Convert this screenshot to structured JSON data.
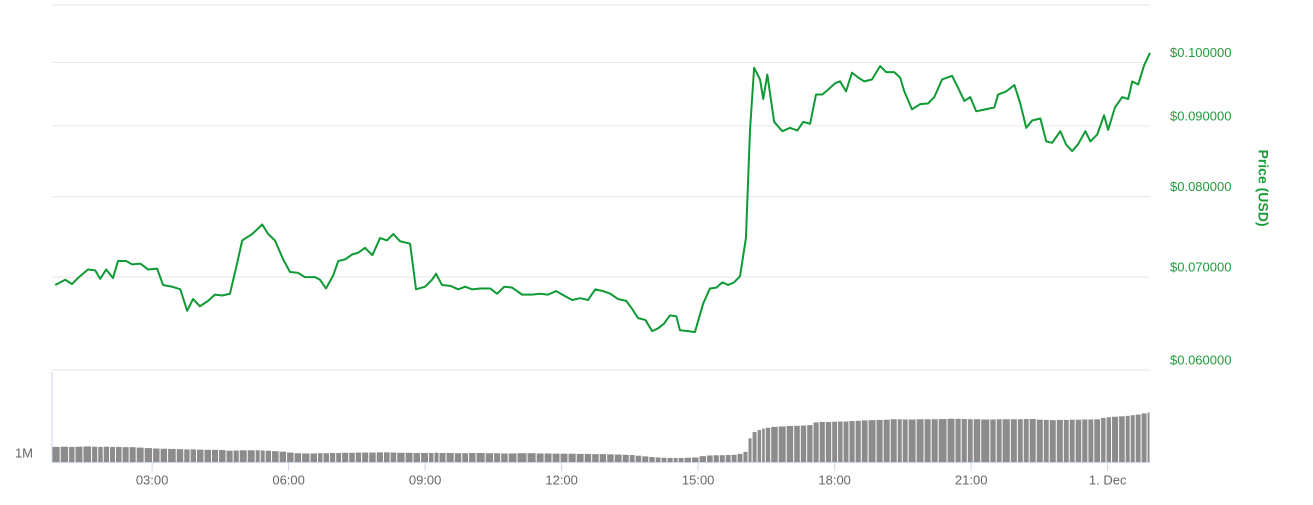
{
  "chart_data": {
    "type": "line",
    "y_label": "Price (USD)",
    "ylog": true,
    "grid": true,
    "xlim": [
      0.8,
      24.93
    ],
    "xticks": [
      {
        "value": 3,
        "label": "03:00"
      },
      {
        "value": 6,
        "label": "06:00"
      },
      {
        "value": 9,
        "label": "09:00"
      },
      {
        "value": 12,
        "label": "12:00"
      },
      {
        "value": 15,
        "label": "15:00"
      },
      {
        "value": 18,
        "label": "18:00"
      },
      {
        "value": 21,
        "label": "21:00"
      },
      {
        "value": 24,
        "label": "1. Dec"
      }
    ],
    "ylim": [
      0.06,
      0.11
    ],
    "yticks": [
      {
        "value": 0.06,
        "label": "$0.060000"
      },
      {
        "value": 0.07,
        "label": "$0.070000"
      },
      {
        "value": 0.08,
        "label": "$0.080000"
      },
      {
        "value": 0.09,
        "label": "$0.090000"
      },
      {
        "value": 0.1,
        "label": "$0.100000"
      }
    ],
    "y2lim": [
      1000000,
      5000000
    ],
    "y2ticks": [
      {
        "value": 1000000,
        "label": "1M"
      }
    ],
    "x": [
      0.87,
      1.09,
      1.24,
      1.37,
      1.59,
      1.75,
      1.86,
      1.99,
      2.14,
      2.25,
      2.43,
      2.56,
      2.74,
      2.91,
      3.11,
      3.24,
      3.44,
      3.62,
      3.77,
      3.9,
      4.05,
      4.23,
      4.38,
      4.54,
      4.71,
      4.85,
      4.98,
      5.2,
      5.33,
      5.42,
      5.55,
      5.7,
      5.88,
      6.03,
      6.21,
      6.36,
      6.58,
      6.69,
      6.82,
      6.98,
      7.09,
      7.24,
      7.4,
      7.53,
      7.68,
      7.84,
      8.01,
      8.16,
      8.3,
      8.45,
      8.67,
      8.8,
      9.0,
      9.15,
      9.24,
      9.37,
      9.55,
      9.73,
      9.88,
      10.03,
      10.21,
      10.43,
      10.58,
      10.74,
      10.91,
      11.13,
      11.35,
      11.53,
      11.7,
      11.88,
      12.05,
      12.23,
      12.41,
      12.58,
      12.74,
      12.91,
      13.07,
      13.24,
      13.42,
      13.55,
      13.68,
      13.84,
      13.99,
      14.12,
      14.25,
      14.38,
      14.52,
      14.6,
      14.78,
      14.93,
      15.11,
      15.26,
      15.4,
      15.53,
      15.66,
      15.79,
      15.92,
      16.05,
      16.14,
      16.23,
      16.36,
      16.43,
      16.52,
      16.67,
      16.85,
      17.02,
      17.18,
      17.31,
      17.46,
      17.59,
      17.73,
      17.86,
      18.01,
      18.12,
      18.25,
      18.38,
      18.52,
      18.65,
      18.82,
      19.0,
      19.13,
      19.31,
      19.44,
      19.53,
      19.7,
      19.88,
      20.05,
      20.19,
      20.36,
      20.58,
      20.71,
      20.85,
      20.98,
      21.11,
      21.31,
      21.51,
      21.59,
      21.77,
      21.95,
      22.08,
      22.21,
      22.34,
      22.52,
      22.65,
      22.78,
      22.96,
      23.09,
      23.22,
      23.35,
      23.51,
      23.62,
      23.77,
      23.92,
      24.01,
      24.16,
      24.32,
      24.45,
      24.54,
      24.67,
      24.8,
      24.93
    ],
    "series": [
      {
        "color": "#0f9a35",
        "values": [
          0.0691,
          0.0697,
          0.0692,
          0.0699,
          0.0709,
          0.0708,
          0.0698,
          0.0709,
          0.0699,
          0.0719,
          0.0719,
          0.0715,
          0.0716,
          0.0709,
          0.071,
          0.0691,
          0.0689,
          0.0686,
          0.0662,
          0.0675,
          0.0667,
          0.0673,
          0.068,
          0.0679,
          0.0681,
          0.0712,
          0.0744,
          0.0752,
          0.0759,
          0.0764,
          0.0752,
          0.0744,
          0.0721,
          0.0706,
          0.0705,
          0.07,
          0.07,
          0.0697,
          0.0687,
          0.0702,
          0.0719,
          0.0721,
          0.0727,
          0.0729,
          0.0735,
          0.0726,
          0.0747,
          0.0744,
          0.0752,
          0.0743,
          0.074,
          0.0686,
          0.0689,
          0.0697,
          0.0704,
          0.0691,
          0.069,
          0.0686,
          0.0689,
          0.0686,
          0.0687,
          0.0687,
          0.0681,
          0.0689,
          0.0688,
          0.068,
          0.068,
          0.0681,
          0.068,
          0.0684,
          0.0679,
          0.0674,
          0.0676,
          0.0674,
          0.0686,
          0.0684,
          0.0681,
          0.0675,
          0.0673,
          0.0664,
          0.0654,
          0.0652,
          0.064,
          0.0643,
          0.0648,
          0.0657,
          0.0656,
          0.0641,
          0.064,
          0.0639,
          0.067,
          0.0687,
          0.0688,
          0.0694,
          0.0691,
          0.0694,
          0.0701,
          0.0747,
          0.0894,
          0.0991,
          0.0972,
          0.0941,
          0.098,
          0.0906,
          0.0892,
          0.0897,
          0.0893,
          0.0906,
          0.0903,
          0.0948,
          0.0948,
          0.0956,
          0.0966,
          0.0969,
          0.0953,
          0.0983,
          0.0975,
          0.0969,
          0.0972,
          0.0994,
          0.0984,
          0.0984,
          0.0975,
          0.0953,
          0.0925,
          0.0933,
          0.0934,
          0.0944,
          0.0972,
          0.0978,
          0.0959,
          0.0938,
          0.0944,
          0.0922,
          0.0925,
          0.0928,
          0.0948,
          0.0953,
          0.0963,
          0.0934,
          0.0897,
          0.0908,
          0.0911,
          0.0877,
          0.0875,
          0.0892,
          0.0872,
          0.0863,
          0.0873,
          0.0892,
          0.0877,
          0.0887,
          0.0916,
          0.0894,
          0.0928,
          0.0944,
          0.0941,
          0.0969,
          0.0964,
          0.0995,
          0.1016
        ]
      },
      {
        "type": "bar",
        "axis": "y2",
        "color": "#8c8c8c",
        "values": [
          1670000,
          1680000,
          1670000,
          1680000,
          1690000,
          1680000,
          1670000,
          1680000,
          1670000,
          1670000,
          1660000,
          1660000,
          1640000,
          1620000,
          1600000,
          1590000,
          1580000,
          1570000,
          1560000,
          1560000,
          1550000,
          1540000,
          1540000,
          1530000,
          1500000,
          1510000,
          1520000,
          1520000,
          1520000,
          1510000,
          1500000,
          1480000,
          1460000,
          1420000,
          1390000,
          1380000,
          1380000,
          1390000,
          1390000,
          1400000,
          1400000,
          1410000,
          1410000,
          1420000,
          1420000,
          1420000,
          1430000,
          1430000,
          1420000,
          1410000,
          1410000,
          1400000,
          1400000,
          1400000,
          1410000,
          1400000,
          1400000,
          1390000,
          1390000,
          1400000,
          1400000,
          1390000,
          1390000,
          1380000,
          1380000,
          1390000,
          1390000,
          1380000,
          1380000,
          1370000,
          1370000,
          1370000,
          1360000,
          1360000,
          1350000,
          1350000,
          1340000,
          1330000,
          1320000,
          1310000,
          1280000,
          1250000,
          1220000,
          1200000,
          1190000,
          1180000,
          1180000,
          1180000,
          1190000,
          1200000,
          1260000,
          1290000,
          1300000,
          1300000,
          1310000,
          1320000,
          1360000,
          1450000,
          2050000,
          2330000,
          2420000,
          2480000,
          2520000,
          2560000,
          2580000,
          2600000,
          2610000,
          2620000,
          2640000,
          2760000,
          2780000,
          2780000,
          2790000,
          2800000,
          2800000,
          2820000,
          2830000,
          2850000,
          2860000,
          2870000,
          2880000,
          2900000,
          2900000,
          2890000,
          2890000,
          2900000,
          2900000,
          2900000,
          2910000,
          2920000,
          2920000,
          2910000,
          2900000,
          2900000,
          2890000,
          2890000,
          2900000,
          2900000,
          2900000,
          2900000,
          2910000,
          2910000,
          2880000,
          2870000,
          2860000,
          2870000,
          2870000,
          2880000,
          2880000,
          2890000,
          2890000,
          2900000,
          2960000,
          2990000,
          3010000,
          3030000,
          3050000,
          3080000,
          3110000,
          3160000,
          3200000
        ]
      }
    ]
  }
}
